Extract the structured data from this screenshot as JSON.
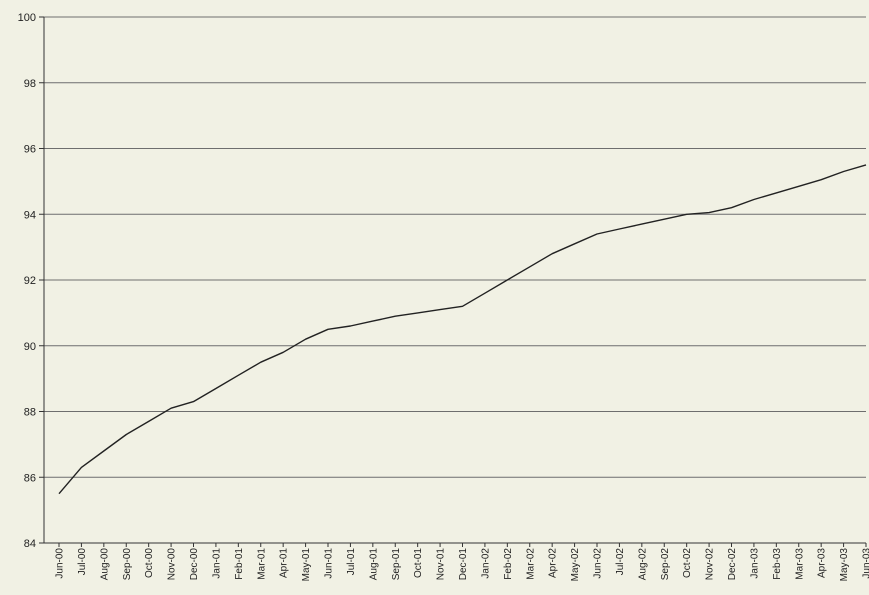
{
  "chart_data": {
    "type": "line",
    "title": "",
    "xlabel": "",
    "ylabel": "",
    "ylim": [
      84,
      100
    ],
    "yticks": [
      84,
      86,
      88,
      90,
      92,
      94,
      96,
      98,
      100
    ],
    "grid": true,
    "legend": "none",
    "colors": {
      "background": "#f1f1e4",
      "gridline": "#6e6e6e",
      "axis": "#333333",
      "line": "#222222"
    },
    "x": [
      "Jun-00",
      "Jul-00",
      "Aug-00",
      "Sep-00",
      "Oct-00",
      "Nov-00",
      "Dec-00",
      "Jan-01",
      "Feb-01",
      "Mar-01",
      "Apr-01",
      "May-01",
      "Jun-01",
      "Jul-01",
      "Aug-01",
      "Sep-01",
      "Oct-01",
      "Nov-01",
      "Dec-01",
      "Jan-02",
      "Feb-02",
      "Mar-02",
      "Apr-02",
      "May-02",
      "Jun-02",
      "Jul-02",
      "Aug-02",
      "Sep-02",
      "Oct-02",
      "Nov-02",
      "Dec-02",
      "Jan-03",
      "Feb-03",
      "Mar-03",
      "Apr-03",
      "May-03",
      "Jun-03"
    ],
    "series": [
      {
        "values": [
          85.5,
          86.3,
          86.8,
          87.3,
          87.7,
          88.1,
          88.3,
          88.7,
          89.1,
          89.5,
          89.8,
          90.2,
          90.5,
          90.6,
          90.75,
          90.9,
          91.0,
          91.1,
          91.2,
          91.6,
          92.0,
          92.4,
          92.8,
          93.1,
          93.4,
          93.55,
          93.7,
          93.85,
          94.0,
          94.05,
          94.2,
          94.45,
          94.65,
          94.85,
          95.05,
          95.3,
          95.5
        ]
      }
    ]
  }
}
